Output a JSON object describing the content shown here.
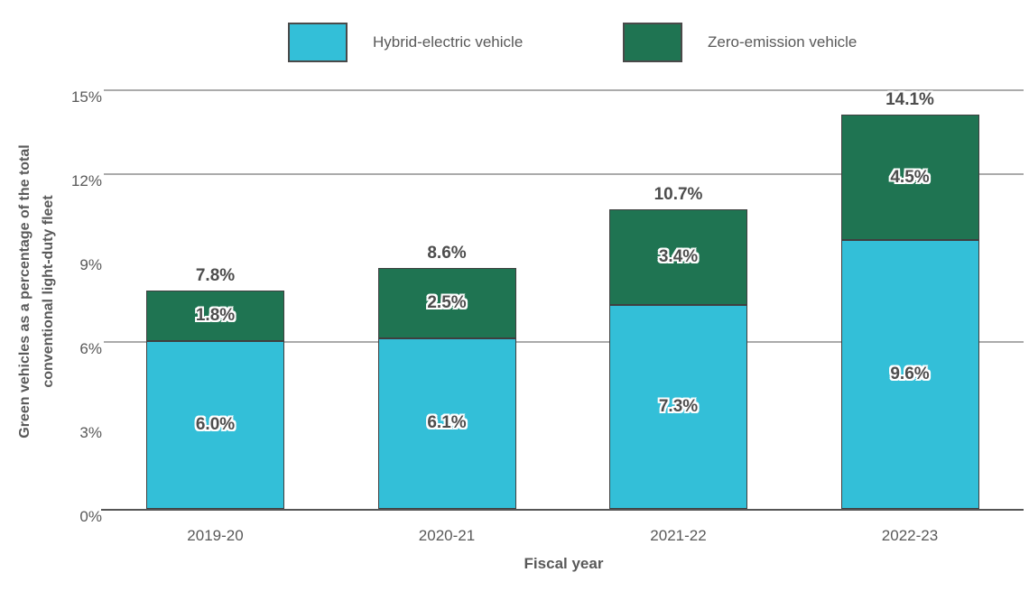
{
  "colors": {
    "hybrid": "#33BFD8",
    "zev": "#1F7452",
    "bar_border": "#3F3F3F",
    "gridline": "#ABABAB",
    "axis_line": "#555555",
    "text_gray": "#595959",
    "data_label_gray": "#4D4D4D",
    "background": "#FFFFFF"
  },
  "legend": {
    "items": [
      {
        "label": "Hybrid-electric vehicle",
        "color": "#33BFD8"
      },
      {
        "label": "Zero-emission vehicle",
        "color": "#1F7452"
      }
    ]
  },
  "chart_data": {
    "type": "bar",
    "stacked": true,
    "title": "",
    "xlabel": "Fiscal year",
    "ylabel": "Green vehicles as a percentage of the total conventional light-duty fleet",
    "ylabel_lines": [
      "Green vehicles as a percentage of the total",
      "conventional light-duty fleet"
    ],
    "categories": [
      "2019-20",
      "2020-21",
      "2021-22",
      "2022-23"
    ],
    "series": [
      {
        "name": "Hybrid-electric vehicle",
        "color": "#33BFD8",
        "values": [
          6.0,
          6.1,
          7.3,
          9.6
        ],
        "value_labels": [
          "6.0%",
          "6.1%",
          "7.3%",
          "9.6%"
        ]
      },
      {
        "name": "Zero-emission vehicle",
        "color": "#1F7452",
        "values": [
          1.8,
          2.5,
          3.4,
          4.5
        ],
        "value_labels": [
          "1.8%",
          "2.5%",
          "3.4%",
          "4.5%"
        ]
      }
    ],
    "totals": [
      7.8,
      8.6,
      10.7,
      14.1
    ],
    "total_labels": [
      "7.8%",
      "8.6%",
      "10.7%",
      "14.1%"
    ],
    "ylim": [
      0,
      15
    ],
    "yticks": [
      {
        "value": 0,
        "label": "0%"
      },
      {
        "value": 3,
        "label": "3%"
      },
      {
        "value": 6,
        "label": "6%"
      },
      {
        "value": 9,
        "label": "9%"
      },
      {
        "value": 12,
        "label": "12%"
      },
      {
        "value": 15,
        "label": "15%"
      }
    ],
    "gridline_values": [
      6,
      12,
      15
    ],
    "legend_position": "top",
    "grid": "horizontal-partial"
  }
}
